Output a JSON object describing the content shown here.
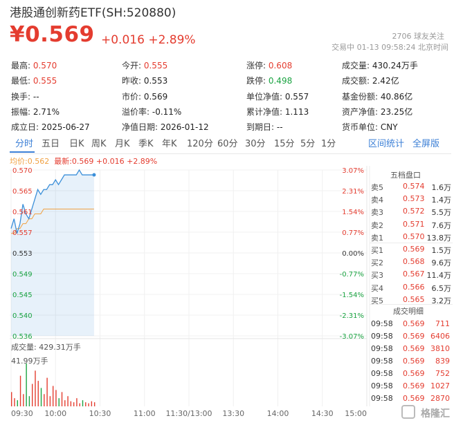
{
  "header": {
    "title": "港股通创新药ETF(SH:520880)",
    "price": "¥0.569",
    "change": "+0.016",
    "change_pct": "+2.89%",
    "followers": "2706 球友关注",
    "status": "交易中 01-13 09:58:24 北京时间"
  },
  "stats": [
    [
      {
        "label": "最高:",
        "value": "0.570",
        "color": "red"
      },
      {
        "label": "今开:",
        "value": "0.555",
        "color": "red"
      },
      {
        "label": "涨停:",
        "value": "0.608",
        "color": "red"
      },
      {
        "label": "成交量:",
        "value": "430.24万手",
        "color": "dark"
      }
    ],
    [
      {
        "label": "最低:",
        "value": "0.555",
        "color": "red"
      },
      {
        "label": "昨收:",
        "value": "0.553",
        "color": "dark"
      },
      {
        "label": "跌停:",
        "value": "0.498",
        "color": "green"
      },
      {
        "label": "成交额:",
        "value": "2.42亿",
        "color": "dark"
      }
    ],
    [
      {
        "label": "换手:",
        "value": "--",
        "color": "dark"
      },
      {
        "label": "市价:",
        "value": "0.569",
        "color": "dark"
      },
      {
        "label": "单位净值:",
        "value": "0.557",
        "color": "dark"
      },
      {
        "label": "基金份额:",
        "value": "40.86亿",
        "color": "dark"
      }
    ],
    [
      {
        "label": "振幅:",
        "value": "2.71%",
        "color": "dark"
      },
      {
        "label": "溢价率:",
        "value": "-0.11%",
        "color": "dark"
      },
      {
        "label": "累计净值:",
        "value": "1.113",
        "color": "dark"
      },
      {
        "label": "资产净值:",
        "value": "23.25亿",
        "color": "dark"
      }
    ],
    [
      {
        "label": "成立日:",
        "value": "2025-06-27",
        "color": "dark"
      },
      {
        "label": "净值日期:",
        "value": "2026-01-12",
        "color": "dark"
      },
      {
        "label": "到期日:",
        "value": "--",
        "color": "dark"
      },
      {
        "label": "货币单位:",
        "value": "CNY",
        "color": "dark"
      }
    ]
  ],
  "tabs": [
    "分时",
    "五日",
    "日K",
    "周K",
    "月K",
    "季K",
    "年K",
    "120分",
    "60分",
    "30分",
    "15分",
    "5分",
    "1分"
  ],
  "tab_links": {
    "range_stats": "区间统计",
    "fullscreen": "全屏版"
  },
  "legend": {
    "avg": "均价:0.562",
    "latest": "最新:0.569 +0.016 +2.89%"
  },
  "volume": {
    "label": "成交量: 429.31万手",
    "max": "41.99万手"
  },
  "orderbook": {
    "title": "五档盘口",
    "asks": [
      {
        "label": "卖5",
        "price": "0.574",
        "vol": "1.6万"
      },
      {
        "label": "卖4",
        "price": "0.573",
        "vol": "1.4万"
      },
      {
        "label": "卖3",
        "price": "0.572",
        "vol": "5.5万"
      },
      {
        "label": "卖2",
        "price": "0.571",
        "vol": "7.6万"
      },
      {
        "label": "卖1",
        "price": "0.570",
        "vol": "13.8万"
      }
    ],
    "bids": [
      {
        "label": "买1",
        "price": "0.569",
        "vol": "1.5万"
      },
      {
        "label": "买2",
        "price": "0.568",
        "vol": "9.6万"
      },
      {
        "label": "买3",
        "price": "0.567",
        "vol": "11.4万"
      },
      {
        "label": "买4",
        "price": "0.566",
        "vol": "6.5万"
      },
      {
        "label": "买5",
        "price": "0.565",
        "vol": "3.2万"
      }
    ]
  },
  "trades": {
    "title": "成交明细",
    "rows": [
      {
        "time": "09:58",
        "price": "0.569",
        "vol": "711"
      },
      {
        "time": "09:58",
        "price": "0.569",
        "vol": "6406"
      },
      {
        "time": "09:58",
        "price": "0.569",
        "vol": "3810"
      },
      {
        "time": "09:58",
        "price": "0.569",
        "vol": "839"
      },
      {
        "time": "09:58",
        "price": "0.569",
        "vol": "752"
      },
      {
        "time": "09:58",
        "price": "0.569",
        "vol": "1027"
      },
      {
        "time": "09:58",
        "price": "0.569",
        "vol": "2870"
      }
    ]
  },
  "watermark": "格隆汇",
  "chart_data": {
    "type": "line",
    "y_left": [
      "0.570",
      "0.565",
      "0.561",
      "0.557",
      "0.553",
      "0.549",
      "0.545",
      "0.540",
      "0.536"
    ],
    "y_right": [
      "3.07%",
      "2.31%",
      "1.54%",
      "0.77%",
      "0.00%",
      "-0.77%",
      "-1.54%",
      "-2.31%",
      "-3.07%"
    ],
    "x_ticks": [
      "09:30",
      "10:00",
      "10:30",
      "11:00",
      "11:30/13:00",
      "13:30",
      "14:00",
      "14:30",
      "15:00"
    ],
    "ylim": [
      0.536,
      0.57
    ],
    "price_series": [
      0.558,
      0.56,
      0.557,
      0.559,
      0.563,
      0.561,
      0.56,
      0.562,
      0.564,
      0.566,
      0.565,
      0.566,
      0.566,
      0.567,
      0.567,
      0.568,
      0.567,
      0.568,
      0.569,
      0.569,
      0.569,
      0.569,
      0.569,
      0.57,
      0.569,
      0.569,
      0.569,
      0.569,
      0.569
    ],
    "avg_series": [
      0.557,
      0.557,
      0.558,
      0.558,
      0.559,
      0.559,
      0.56,
      0.56,
      0.561,
      0.561,
      0.561,
      0.562,
      0.562,
      0.562,
      0.562,
      0.562,
      0.562,
      0.562,
      0.562,
      0.562,
      0.562,
      0.562,
      0.562,
      0.562,
      0.562,
      0.562,
      0.562,
      0.562,
      0.562
    ],
    "volume_series": [
      14,
      8,
      6,
      30,
      12,
      42,
      10,
      22,
      35,
      25,
      18,
      12,
      28,
      10,
      20,
      16,
      8,
      14,
      6,
      10,
      5,
      4,
      8,
      3,
      6,
      4,
      3,
      5,
      4
    ],
    "volume_max": 42,
    "colors": {
      "price": "#3b8fd9",
      "avg": "#f0a040",
      "up": "#e43c2f",
      "down": "#1aa341"
    }
  }
}
